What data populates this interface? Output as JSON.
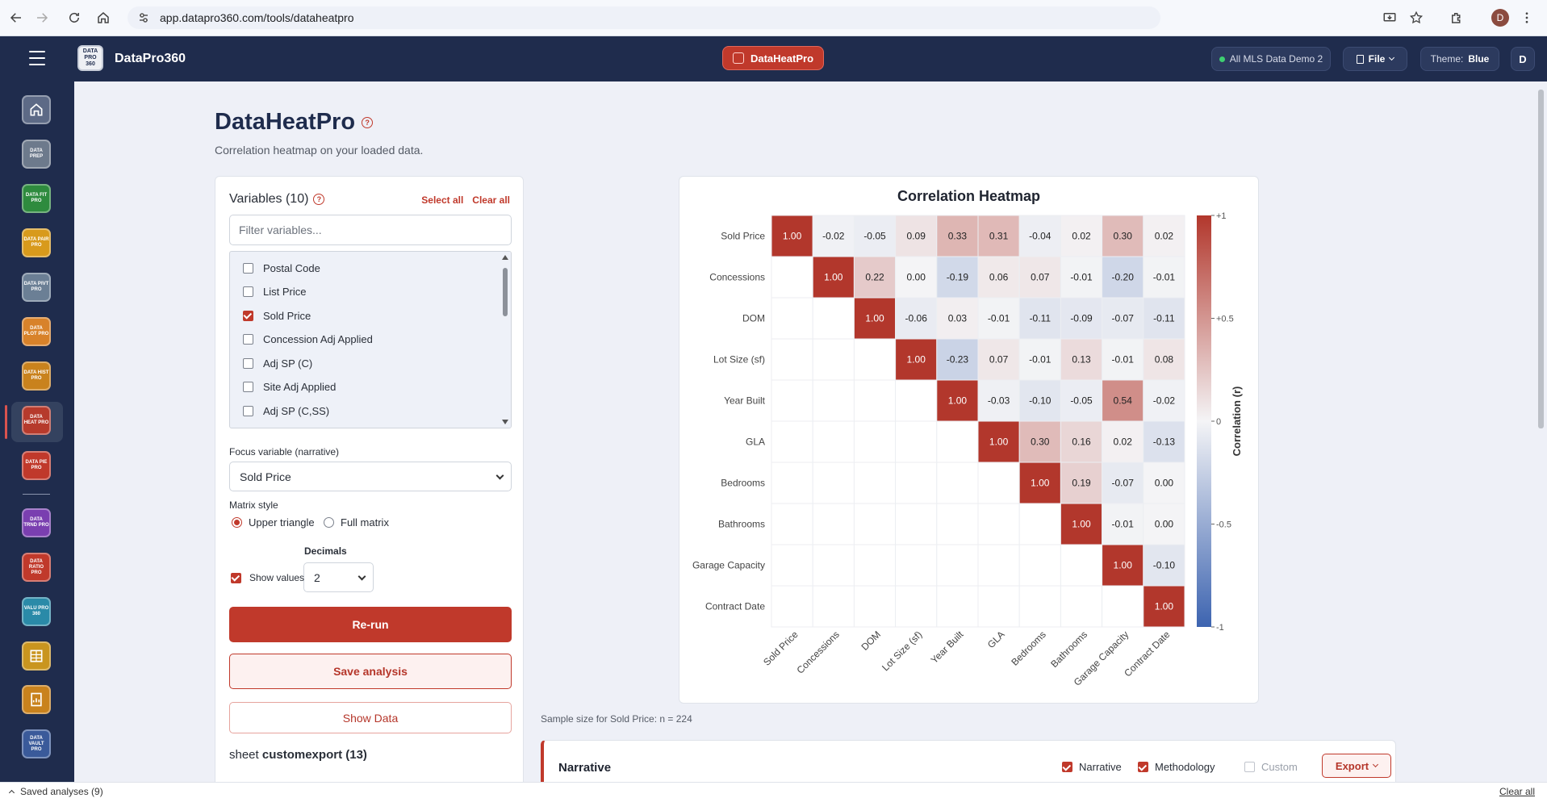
{
  "browser": {
    "url": "app.datapro360.com/tools/dataheatpro",
    "profile_initial": "D"
  },
  "header": {
    "app_title": "DataPro360",
    "logo_text": "DATA PRO 360",
    "tool_pill": "DataHeatPro",
    "dataset_label": "All MLS Data Demo 2",
    "file_label": "File",
    "theme_label": "Theme:",
    "theme_value": "Blue",
    "avatar_initial": "D"
  },
  "sidebar": {
    "items": [
      {
        "name": "home",
        "text": "",
        "color": "#5d6a86"
      },
      {
        "name": "dataprep",
        "text": "DATA PREP",
        "color": "#6d7a8c"
      },
      {
        "name": "datafitpro",
        "text": "DATA FIT PRO",
        "color": "#2e8b3e"
      },
      {
        "name": "datapairpro",
        "text": "DATA PAIR PRO",
        "color": "#d89a1c"
      },
      {
        "name": "datapivtpro",
        "text": "DATA PIVT PRO",
        "color": "#6b7f95"
      },
      {
        "name": "dataplotpro",
        "text": "DATA PLOT PRO",
        "color": "#d8822a"
      },
      {
        "name": "datahistpro",
        "text": "DATA HIST PRO",
        "color": "#c9821d"
      },
      {
        "name": "dataheatpro",
        "text": "DATA HEAT PRO",
        "color": "#b63a2c"
      },
      {
        "name": "datapiepro",
        "text": "DATA PIE PRO",
        "color": "#c0392b"
      },
      {
        "name": "datatrndpro",
        "text": "DATA TRND PRO",
        "color": "#7a3fb0"
      },
      {
        "name": "dataratiopro",
        "text": "DATA RATIO PRO",
        "color": "#c0392b"
      },
      {
        "name": "valupro360",
        "text": "VALU PRO 360",
        "color": "#2a8aa8"
      },
      {
        "name": "grid-tool",
        "text": "",
        "color": "#c9951f"
      },
      {
        "name": "report-tool",
        "text": "",
        "color": "#c9821d"
      },
      {
        "name": "datavaultpro",
        "text": "DATA VAULT PRO",
        "color": "#3a5a9a"
      }
    ]
  },
  "page": {
    "title": "DataHeatPro",
    "subtitle": "Correlation heatmap on your loaded data."
  },
  "variables": {
    "heading": "Variables (10)",
    "select_all": "Select all",
    "clear_all": "Clear all",
    "filter_placeholder": "Filter variables...",
    "list": [
      {
        "label": "Postal Code",
        "checked": false
      },
      {
        "label": "List Price",
        "checked": false
      },
      {
        "label": "Sold Price",
        "checked": true
      },
      {
        "label": "Concession Adj Applied",
        "checked": false
      },
      {
        "label": "Adj SP (C)",
        "checked": false
      },
      {
        "label": "Site Adj Applied",
        "checked": false
      },
      {
        "label": "Adj SP (C,SS)",
        "checked": false
      }
    ]
  },
  "controls": {
    "focus_label": "Focus variable (narrative)",
    "focus_value": "Sold Price",
    "matrix_style_label": "Matrix style",
    "upper_triangle": "Upper triangle",
    "full_matrix": "Full matrix",
    "decimals_label": "Decimals",
    "decimals_value": "2",
    "show_values_label": "Show values",
    "rerun": "Re-run",
    "save_analysis": "Save analysis",
    "show_data": "Show Data",
    "sheet_prefix": "sheet",
    "sheet_name": "customexport (13)"
  },
  "chart_data": {
    "type": "heatmap",
    "title": "Correlation Heatmap",
    "variables": [
      "Sold Price",
      "Concessions",
      "DOM",
      "Lot Size (sf)",
      "Year Built",
      "GLA",
      "Bedrooms",
      "Bathrooms",
      "Garage Capacity",
      "Contract Date"
    ],
    "matrix_style": "upper triangle",
    "matrix": [
      [
        1.0,
        -0.02,
        -0.05,
        0.09,
        0.33,
        0.31,
        -0.04,
        0.02,
        0.3,
        0.02
      ],
      [
        null,
        1.0,
        0.22,
        0.0,
        -0.19,
        0.06,
        0.07,
        -0.01,
        -0.2,
        -0.01
      ],
      [
        null,
        null,
        1.0,
        -0.06,
        0.03,
        -0.01,
        -0.11,
        -0.09,
        -0.07,
        -0.11
      ],
      [
        null,
        null,
        null,
        1.0,
        -0.23,
        0.07,
        -0.01,
        0.13,
        -0.01,
        0.08
      ],
      [
        null,
        null,
        null,
        null,
        1.0,
        -0.03,
        -0.1,
        -0.05,
        0.54,
        -0.02
      ],
      [
        null,
        null,
        null,
        null,
        null,
        1.0,
        0.3,
        0.16,
        0.02,
        -0.13
      ],
      [
        null,
        null,
        null,
        null,
        null,
        null,
        1.0,
        0.19,
        -0.07,
        0.0
      ],
      [
        null,
        null,
        null,
        null,
        null,
        null,
        null,
        1.0,
        -0.01,
        0.0
      ],
      [
        null,
        null,
        null,
        null,
        null,
        null,
        null,
        null,
        1.0,
        -0.1
      ],
      [
        null,
        null,
        null,
        null,
        null,
        null,
        null,
        null,
        null,
        1.0
      ]
    ],
    "colorbar": {
      "label": "Correlation (r)",
      "range": [
        -1,
        1
      ],
      "ticks": [
        "+1",
        "+0.5",
        "0",
        "-0.5",
        "-1"
      ],
      "positive_color": "#b2372c",
      "negative_color": "#3d64b0",
      "zero_color": "#f4f4f6"
    }
  },
  "sample_size": "Sample size for Sold Price: n = 224",
  "narrative": {
    "title": "Narrative",
    "opt_narrative": "Narrative",
    "opt_methodology": "Methodology",
    "opt_custom": "Custom",
    "export": "Export"
  },
  "footer": {
    "saved_analyses": "Saved analyses (9)",
    "clear_all": "Clear all"
  }
}
